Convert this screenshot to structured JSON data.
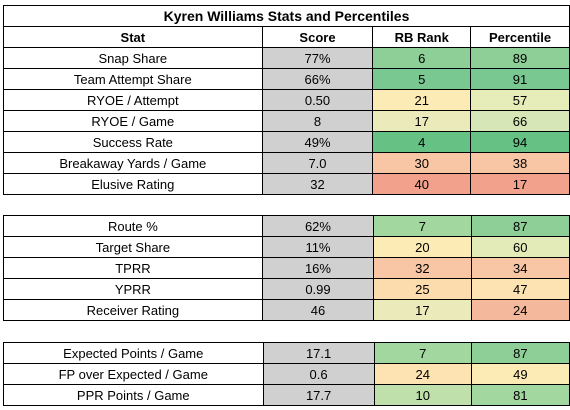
{
  "title": "Kyren Williams Stats and Percentiles",
  "headers": {
    "stat": "Stat",
    "score": "Score",
    "rank": "RB Rank",
    "pct": "Percentile"
  },
  "colors": {
    "dark_green": "#66c185",
    "green": "#8dcf97",
    "light_green": "#d6e6b7",
    "yellow": "#fdebb5",
    "light_orange": "#f8c6a5",
    "red": "#f1a18c",
    "score_gray": "#d0d0d0"
  },
  "groups": [
    {
      "rows": [
        {
          "stat": "Snap Share",
          "score": "77%",
          "rank": "6",
          "pct": "89",
          "rank_color": "#8dcf97",
          "pct_color": "#8dcf97"
        },
        {
          "stat": "Team Attempt Share",
          "score": "66%",
          "rank": "5",
          "pct": "91",
          "rank_color": "#7ac891",
          "pct_color": "#7ac891"
        },
        {
          "stat": "RYOE / Attempt",
          "score": "0.50",
          "rank": "21",
          "pct": "57",
          "rank_color": "#fdebb5",
          "pct_color": "#e6edb8"
        },
        {
          "stat": "RYOE / Game",
          "score": "8",
          "rank": "17",
          "pct": "66",
          "rank_color": "#eaeaba",
          "pct_color": "#d6e6b7"
        },
        {
          "stat": "Success Rate",
          "score": "49%",
          "rank": "4",
          "pct": "94",
          "rank_color": "#66c185",
          "pct_color": "#66c185"
        },
        {
          "stat": "Breakaway Yards / Game",
          "score": "7.0",
          "rank": "30",
          "pct": "38",
          "rank_color": "#f8c6a5",
          "pct_color": "#f8c6a5"
        },
        {
          "stat": "Elusive Rating",
          "score": "32",
          "rank": "40",
          "pct": "17",
          "rank_color": "#f1a18c",
          "pct_color": "#f1a18c"
        }
      ]
    },
    {
      "rows": [
        {
          "stat": "Route %",
          "score": "62%",
          "rank": "7",
          "pct": "87",
          "rank_color": "#a3d7a0",
          "pct_color": "#8dcf97"
        },
        {
          "stat": "Target Share",
          "score": "11%",
          "rank": "20",
          "pct": "60",
          "rank_color": "#fdebb5",
          "pct_color": "#e3ebb8"
        },
        {
          "stat": "TPRR",
          "score": "16%",
          "rank": "32",
          "pct": "34",
          "rank_color": "#f8c6a5",
          "pct_color": "#f8c6a5"
        },
        {
          "stat": "YPRR",
          "score": "0.99",
          "rank": "25",
          "pct": "47",
          "rank_color": "#fcdcad",
          "pct_color": "#fde3b1"
        },
        {
          "stat": "Receiver Rating",
          "score": "46",
          "rank": "17",
          "pct": "24",
          "rank_color": "#eaeaba",
          "pct_color": "#f4b89c"
        }
      ]
    },
    {
      "rows": [
        {
          "stat": "Expected Points / Game",
          "score": "17.1",
          "rank": "7",
          "pct": "87",
          "rank_color": "#a3d7a0",
          "pct_color": "#8dcf97"
        },
        {
          "stat": "FP over Expected / Game",
          "score": "0.6",
          "rank": "24",
          "pct": "49",
          "rank_color": "#fde3b1",
          "pct_color": "#fdebb5"
        },
        {
          "stat": "PPR Points / Game",
          "score": "17.7",
          "rank": "10",
          "pct": "81",
          "rank_color": "#bfe0ab",
          "pct_color": "#a3d7a0"
        }
      ]
    }
  ]
}
